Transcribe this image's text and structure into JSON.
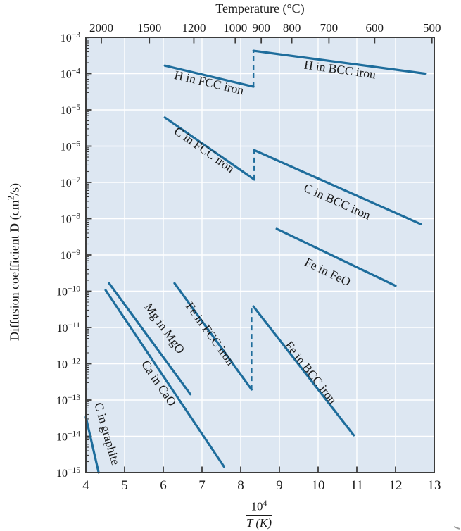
{
  "chart_data": {
    "type": "line",
    "top_axis_title": "Temperature (°C)",
    "y_axis_title": {
      "prefix": "Diffusion coefficient ",
      "symbol": "D",
      "unit_open": " (cm",
      "unit_exponent": "2",
      "unit_close": "/s)"
    },
    "x_axis_title": {
      "numerator_base": "10",
      "numerator_exponent": "4",
      "denominator": "T (K)"
    },
    "x_range": [
      4,
      13
    ],
    "x_ticks": [
      4,
      5,
      6,
      7,
      8,
      9,
      10,
      11,
      12,
      13
    ],
    "y_base": "10",
    "y_tick_exponents": [
      -3,
      -4,
      -5,
      -6,
      -7,
      -8,
      -9,
      -10,
      -11,
      -12,
      -13,
      -14,
      -15
    ],
    "top_axis_ticks": [
      {
        "label": "2000",
        "x": 4.4
      },
      {
        "label": "1500",
        "x": 5.64
      },
      {
        "label": "1200",
        "x": 6.79
      },
      {
        "label": "1000",
        "x": 7.86
      },
      {
        "label": "900",
        "x": 8.53
      },
      {
        "label": "800",
        "x": 9.32
      },
      {
        "label": "700",
        "x": 10.28
      },
      {
        "label": "600",
        "x": 11.46
      },
      {
        "label": "500",
        "x": 12.94
      }
    ],
    "grid": {
      "vertical_x": [
        5,
        6,
        7,
        8,
        9,
        10,
        11,
        12
      ],
      "horizontal_exponents": [
        -4,
        -5,
        -6,
        -7,
        -8,
        -9,
        -10,
        -11,
        -12,
        -13,
        -14
      ]
    },
    "series": [
      {
        "name": "H in FCC iron",
        "points": [
          {
            "x": 6.04,
            "logD": -3.78
          },
          {
            "x": 8.33,
            "logD": -4.36
          }
        ],
        "label": {
          "text": "H in FCC iron",
          "x": 7.16,
          "logD": -4.36,
          "angle_deg": 13
        }
      },
      {
        "name": "H in BCC iron",
        "points": [
          {
            "x": 8.33,
            "logD": -3.37
          },
          {
            "x": 12.76,
            "logD": -4.0
          }
        ],
        "label": {
          "text": "H in BCC iron",
          "x": 10.55,
          "logD": -4.0,
          "angle_deg": 8
        }
      },
      {
        "name": "C in FCC iron",
        "points": [
          {
            "x": 6.04,
            "logD": -5.21
          },
          {
            "x": 8.35,
            "logD": -6.92
          }
        ],
        "label": {
          "text": "C in FCC iron",
          "x": 7.0,
          "logD": -6.19,
          "angle_deg": 35
        }
      },
      {
        "name": "C in BCC iron",
        "points": [
          {
            "x": 8.35,
            "logD": -6.11
          },
          {
            "x": 12.65,
            "logD": -8.15
          }
        ],
        "label": {
          "text": "C in BCC iron",
          "x": 10.45,
          "logD": -7.63,
          "angle_deg": 24
        }
      },
      {
        "name": "Fe in FeO",
        "points": [
          {
            "x": 8.93,
            "logD": -8.28
          },
          {
            "x": 12.0,
            "logD": -9.85
          }
        ],
        "label": {
          "text": "Fe in FeO",
          "x": 10.2,
          "logD": -9.57,
          "angle_deg": 26
        }
      },
      {
        "name": "Fe in FCC iron",
        "points": [
          {
            "x": 6.29,
            "logD": -9.78
          },
          {
            "x": 8.28,
            "logD": -12.71
          }
        ],
        "label": {
          "text": "Fe in FCC iron",
          "x": 7.13,
          "logD": -11.24,
          "angle_deg": 54
        }
      },
      {
        "name": "Fe in BCC iron",
        "points": [
          {
            "x": 8.33,
            "logD": -10.42
          },
          {
            "x": 10.92,
            "logD": -13.97
          }
        ],
        "label": {
          "text": "Fe in BCC iron",
          "x": 9.73,
          "logD": -12.31,
          "angle_deg": 52
        }
      },
      {
        "name": "Mg in MgO",
        "points": [
          {
            "x": 4.6,
            "logD": -9.78
          },
          {
            "x": 6.7,
            "logD": -12.84
          }
        ],
        "label": {
          "text": "Mg in MgO",
          "x": 5.95,
          "logD": -11.09,
          "angle_deg": 54
        }
      },
      {
        "name": "Ca in CaO",
        "points": [
          {
            "x": 4.51,
            "logD": -9.97
          },
          {
            "x": 7.57,
            "logD": -14.84
          }
        ],
        "label": {
          "text": "Ca in CaO",
          "x": 5.8,
          "logD": -12.6,
          "angle_deg": 56
        }
      },
      {
        "name": "C in graphite",
        "points": [
          {
            "x": 4.0,
            "logD": -13.47
          },
          {
            "x": 4.33,
            "logD": -15.0
          }
        ],
        "label": {
          "text": "C in graphite",
          "x": 4.45,
          "logD": -13.96,
          "angle_deg": 74
        }
      }
    ],
    "phase_transition_dashed": [
      {
        "x": 8.33,
        "logD_from": -4.36,
        "logD_to": -3.37
      },
      {
        "x": 8.35,
        "logD_from": -6.92,
        "logD_to": -6.11
      },
      {
        "x": 8.28,
        "logD_from": -12.71,
        "logD_to": -10.42
      }
    ],
    "colors": {
      "line": "#1e6d9c",
      "plot_background": "#dde7f2",
      "grid": "#ffffff",
      "axis": "#3c3c3c",
      "text": "#1a1a1a"
    }
  }
}
